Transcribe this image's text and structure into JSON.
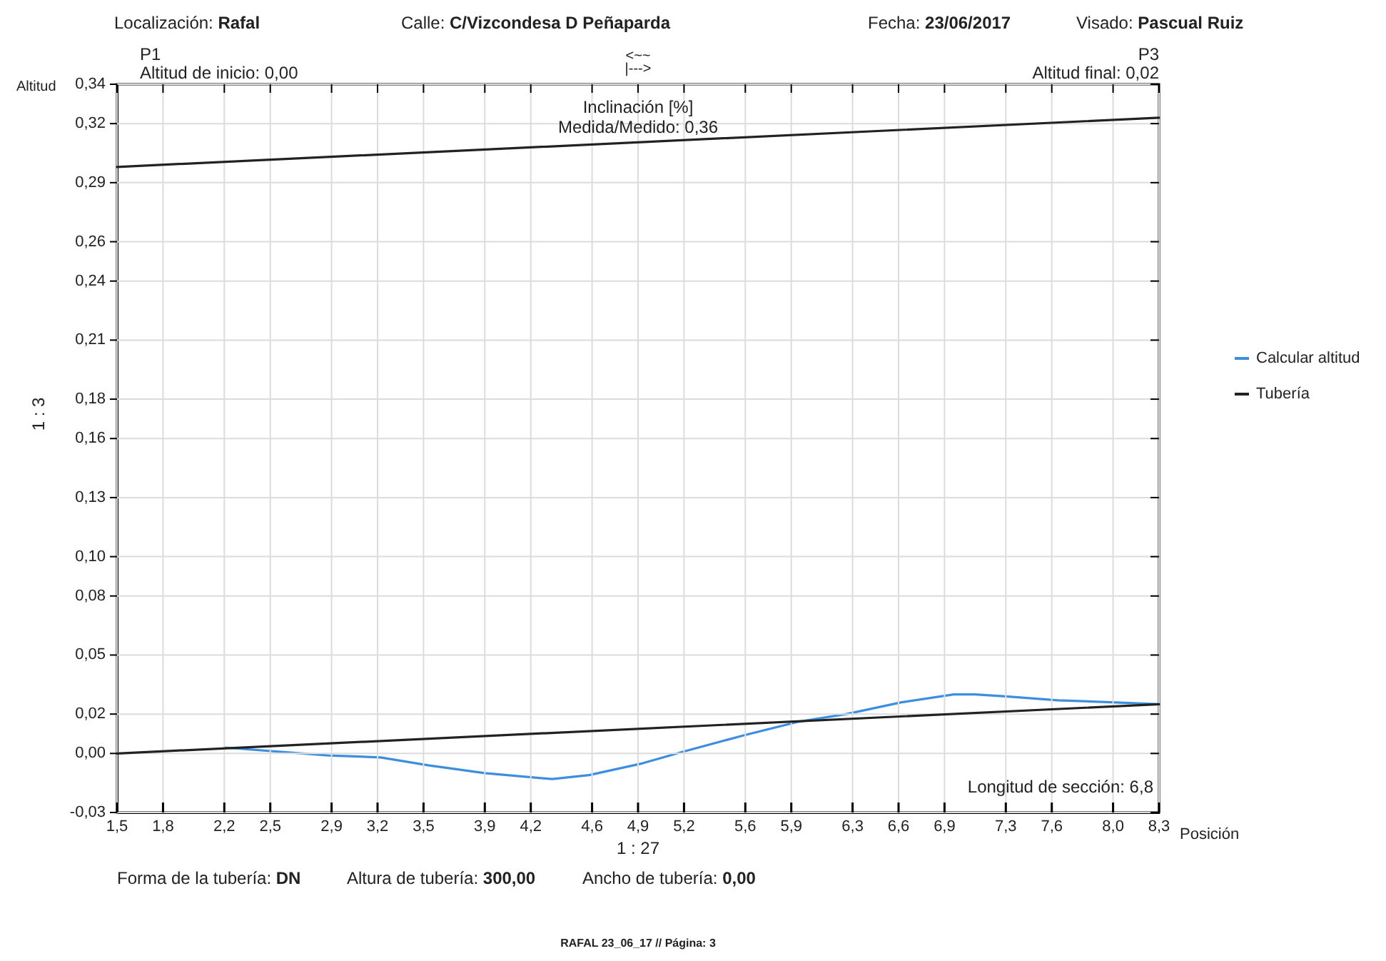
{
  "chart_data": {
    "type": "line",
    "xlabel": "Posición",
    "ylabel": "Altitud",
    "annotations": [
      "Localización: Rafal",
      "Calle: C/Vizcondesa D Peñaparda",
      "Fecha: 23/06/2017",
      "Visado: Pascual Ruiz",
      "P1",
      "Altitud de inicio: 0,00",
      "<~~",
      "|--->",
      "P3",
      "Altitud final: 0,02",
      "Inclinación [%]",
      "Medida/Medido: 0,36",
      "Longitud de sección: 6,8",
      "1 : 27",
      "1 : 3",
      "Forma de la tubería: DN",
      "Altura de tubería: 300,00",
      "Ancho de tubería: 0,00",
      "RAFAL 23_06_17 // Página: 3"
    ],
    "xlim": [
      1.5,
      8.3
    ],
    "xticks": [
      {
        "value": 1.5,
        "label": "1,5"
      },
      {
        "value": 1.8,
        "label": "1,8"
      },
      {
        "value": 2.2,
        "label": "2,2"
      },
      {
        "value": 2.5,
        "label": "2,5"
      },
      {
        "value": 2.9,
        "label": "2,9"
      },
      {
        "value": 3.2,
        "label": "3,2"
      },
      {
        "value": 3.5,
        "label": "3,5"
      },
      {
        "value": 3.9,
        "label": "3,9"
      },
      {
        "value": 4.2,
        "label": "4,2"
      },
      {
        "value": 4.6,
        "label": "4,6"
      },
      {
        "value": 4.9,
        "label": "4,9"
      },
      {
        "value": 5.2,
        "label": "5,2"
      },
      {
        "value": 5.6,
        "label": "5,6"
      },
      {
        "value": 5.9,
        "label": "5,9"
      },
      {
        "value": 6.3,
        "label": "6,3"
      },
      {
        "value": 6.6,
        "label": "6,6"
      },
      {
        "value": 6.9,
        "label": "6,9"
      },
      {
        "value": 7.3,
        "label": "7,3"
      },
      {
        "value": 7.6,
        "label": "7,6"
      },
      {
        "value": 8.0,
        "label": "8,0"
      },
      {
        "value": 8.3,
        "label": "8,3"
      }
    ],
    "ylim": [
      -0.03,
      0.34
    ],
    "yticks": [
      {
        "value": -0.03,
        "label": "-0,03"
      },
      {
        "value": 0.0,
        "label": "0,00"
      },
      {
        "value": 0.02,
        "label": "0,02"
      },
      {
        "value": 0.05,
        "label": "0,05"
      },
      {
        "value": 0.08,
        "label": "0,08"
      },
      {
        "value": 0.1,
        "label": "0,10"
      },
      {
        "value": 0.13,
        "label": "0,13"
      },
      {
        "value": 0.16,
        "label": "0,16"
      },
      {
        "value": 0.18,
        "label": "0,18"
      },
      {
        "value": 0.21,
        "label": "0,21"
      },
      {
        "value": 0.24,
        "label": "0,24"
      },
      {
        "value": 0.26,
        "label": "0,26"
      },
      {
        "value": 0.29,
        "label": "0,29"
      },
      {
        "value": 0.32,
        "label": "0,32"
      },
      {
        "value": 0.34,
        "label": "0,34"
      }
    ],
    "grid": true,
    "legend": "right",
    "line_style": "solid",
    "marker": "none",
    "series": [
      {
        "name": "Calcular altitud",
        "color": "#3b8ee0",
        "x": [
          2.2,
          2.88,
          3.22,
          3.53,
          3.9,
          4.34,
          4.58,
          4.93,
          5.2,
          5.58,
          5.94,
          6.26,
          6.62,
          6.96,
          7.1,
          7.3,
          7.64,
          7.99,
          8.3
        ],
        "values": [
          0.003,
          -0.001,
          -0.002,
          -0.006,
          -0.01,
          -0.013,
          -0.011,
          -0.005,
          0.001,
          0.009,
          0.016,
          0.02,
          0.026,
          0.03,
          0.03,
          0.029,
          0.027,
          0.026,
          0.025
        ]
      },
      {
        "name": "Tubería",
        "color": "#222222",
        "x": [
          1.5,
          8.3
        ],
        "values": [
          0.0,
          0.025
        ]
      },
      {
        "color": "#222222",
        "x": [
          1.5,
          8.3
        ],
        "values": [
          0.298,
          0.323
        ]
      }
    ]
  }
}
